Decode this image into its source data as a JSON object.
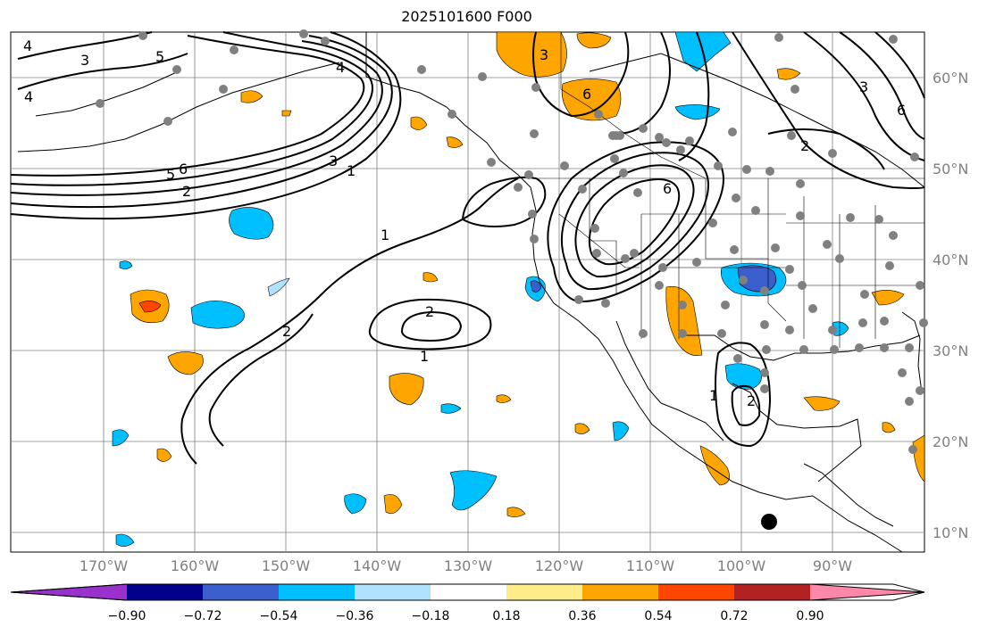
{
  "title": "2025101600 F000",
  "lat_labels": [
    "60°N",
    "50°N",
    "40°N",
    "30°N",
    "20°N",
    "10°N"
  ],
  "lon_labels": [
    "170°W",
    "160°W",
    "150°W",
    "140°W",
    "130°W",
    "120°W",
    "110°W",
    "100°W",
    "90°W"
  ],
  "colorbar": {
    "colors": [
      "#9932cc",
      "#00008b",
      "#3a5fcd",
      "#00bfff",
      "#b0e2ff",
      "#ffffff",
      "#ffec8b",
      "#ffa500",
      "#ff4500",
      "#b22222",
      "#ff88aa"
    ],
    "labels": [
      "−0.90",
      "−0.72",
      "−0.54",
      "−0.36",
      "−0.18",
      "0.18",
      "0.36",
      "0.54",
      "0.72",
      "0.90"
    ]
  },
  "contour_labels": [
    "1",
    "2",
    "3",
    "4",
    "5",
    "6"
  ],
  "colors": {
    "land_outline": "#000000",
    "grid": "#808080",
    "station_marker": "#808080",
    "tick_label": "#808080"
  }
}
